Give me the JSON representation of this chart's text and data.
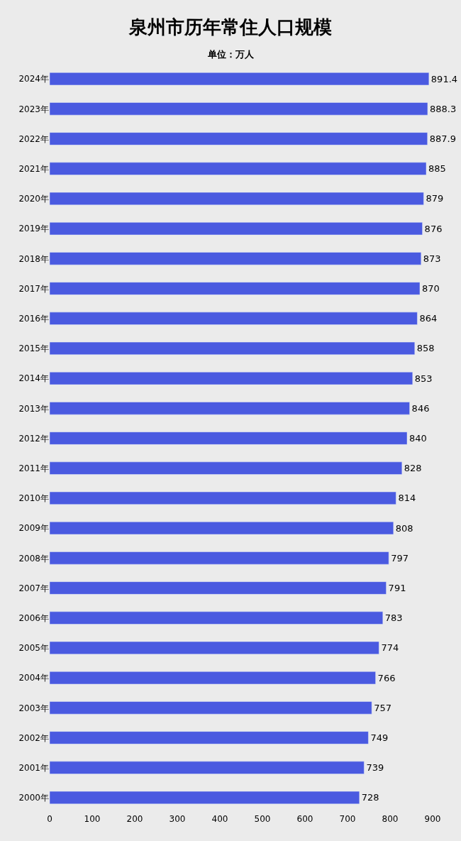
{
  "chart_data": {
    "type": "bar",
    "orientation": "horizontal",
    "title": "泉州市历年常住人口规模",
    "subtitle": "单位：万人",
    "categories": [
      "2024年",
      "2023年",
      "2022年",
      "2021年",
      "2020年",
      "2019年",
      "2018年",
      "2017年",
      "2016年",
      "2015年",
      "2014年",
      "2013年",
      "2012年",
      "2011年",
      "2010年",
      "2009年",
      "2008年",
      "2007年",
      "2006年",
      "2005年",
      "2004年",
      "2003年",
      "2002年",
      "2001年",
      "2000年"
    ],
    "values": [
      891.4,
      888.3,
      887.9,
      885,
      879,
      876,
      873,
      870,
      864,
      858,
      853,
      846,
      840,
      828,
      814,
      808,
      797,
      791,
      783,
      774,
      766,
      757,
      749,
      739,
      728
    ],
    "color": "#4a5ae0",
    "data_labels": true,
    "xlim": [
      0,
      900
    ],
    "xticks": [
      0,
      100,
      200,
      300,
      400,
      500,
      600,
      700,
      800,
      900
    ],
    "grid": false,
    "legend": false
  }
}
